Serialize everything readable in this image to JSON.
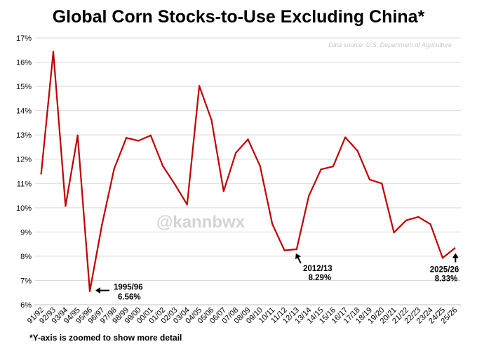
{
  "chart_data": {
    "type": "line",
    "title": "Global Corn Stocks-to-Use Excluding China*",
    "source": "Data source: U.S. Department of Agriculture",
    "watermark": "@kannbwx",
    "footnote": "*Y-axis is zoomed to show more detail",
    "xlabel": "",
    "ylabel": "",
    "ylim": [
      6,
      17
    ],
    "grid": true,
    "line_color": "#c00000",
    "grid_color": "#d9d9d9",
    "y_ticks": [
      "6%",
      "7%",
      "8%",
      "9%",
      "10%",
      "11%",
      "12%",
      "13%",
      "14%",
      "15%",
      "16%",
      "17%"
    ],
    "categories": [
      "91/92",
      "92/93",
      "93/94",
      "94/95",
      "95/96",
      "96/97",
      "97/98",
      "98/99",
      "99/00",
      "00/01",
      "01/02",
      "02/03",
      "03/04",
      "04/05",
      "05/06",
      "06/07",
      "07/08",
      "08/09",
      "09/10",
      "10/11",
      "11/12",
      "12/13",
      "13/14",
      "14/15",
      "15/16",
      "16/17",
      "17/18",
      "18/19",
      "19/20",
      "20/21",
      "21/22",
      "22/23",
      "23/24",
      "24/25",
      "25/26"
    ],
    "values": [
      11.4,
      16.43,
      10.07,
      12.98,
      6.56,
      9.3,
      11.6,
      12.88,
      12.76,
      12.98,
      11.72,
      10.96,
      10.13,
      15.02,
      13.62,
      10.68,
      12.26,
      12.82,
      11.71,
      9.33,
      8.24,
      8.29,
      10.48,
      11.58,
      11.7,
      12.9,
      12.35,
      11.16,
      11.0,
      8.98,
      9.48,
      9.62,
      9.32,
      7.93,
      8.33
    ],
    "annotations": [
      {
        "label": "1995/96",
        "value_text": "6.56%",
        "category": "95/96",
        "value": 6.56
      },
      {
        "label": "2012/13",
        "value_text": "8.29%",
        "category": "12/13",
        "value": 8.29
      },
      {
        "label": "2025/26",
        "value_text": "8.33%",
        "category": "25/26",
        "value": 8.33
      }
    ]
  }
}
